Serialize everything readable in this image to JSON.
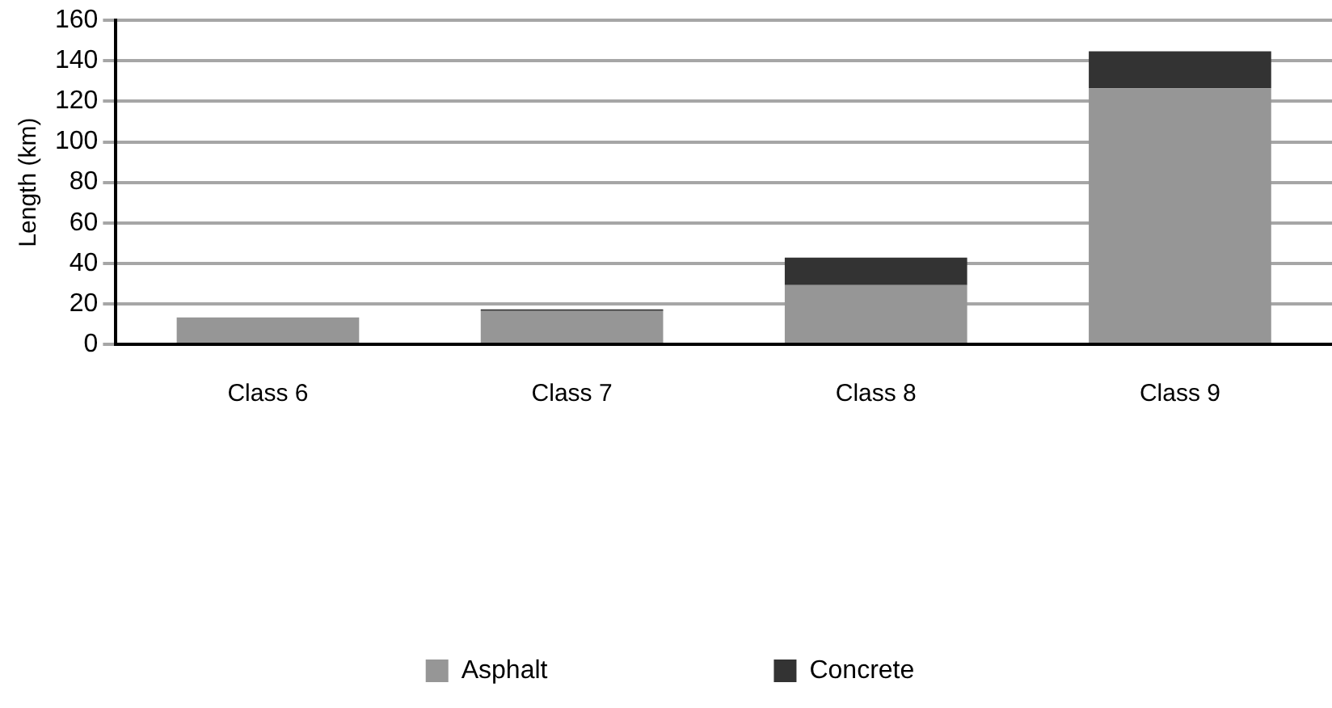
{
  "chart_data": {
    "type": "bar",
    "stacked": true,
    "ylabel": "Length (km)",
    "categories": [
      "Class 6",
      "Class 7",
      "Class 8",
      "Class 9"
    ],
    "series": [
      {
        "name": "Asphalt",
        "color": "#969696",
        "values": [
          13.3,
          16.5,
          29.2,
          126.4
        ]
      },
      {
        "name": "Concrete",
        "color": "#333333",
        "values": [
          0,
          0.8,
          13.6,
          18.3
        ]
      }
    ],
    "ylim": [
      0,
      160
    ],
    "yticks": [
      0,
      20,
      40,
      60,
      80,
      100,
      120,
      140,
      160
    ],
    "grid": "y",
    "legend": "bottom"
  }
}
